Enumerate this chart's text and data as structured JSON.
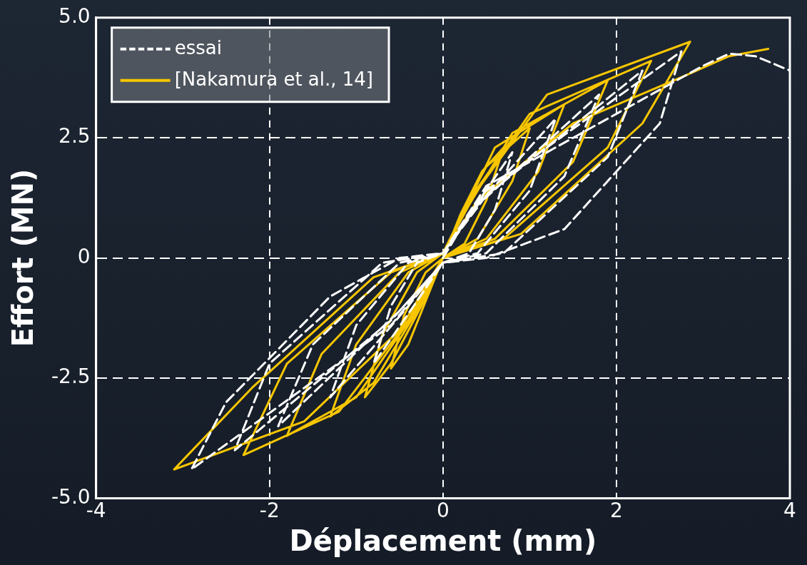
{
  "chart_data": {
    "type": "line",
    "xlabel": "Déplacement (mm)",
    "ylabel": "Effort (MN)",
    "xlim": [
      -4,
      4
    ],
    "xticks": [
      -4,
      -2,
      0,
      2,
      4
    ],
    "ylim": [
      -5,
      5
    ],
    "yticks": [
      {
        "value": -5,
        "label": "-5.0"
      },
      -2.5,
      0,
      2.5,
      {
        "value": 5,
        "label": "5.0"
      }
    ],
    "grid": true,
    "legend": "top left",
    "marker": "none",
    "series": [
      {
        "name": "essai",
        "color": "#ffffff",
        "line_style": "dashed",
        "x": [
          0,
          0.3,
          0.8,
          0.6,
          0.3,
          0,
          -0.3,
          -0.8,
          -0.6,
          -0.3,
          0,
          0.35,
          1.3,
          1.0,
          0.4,
          0,
          -0.4,
          -1.3,
          -1.0,
          -0.4,
          0,
          0.4,
          1.8,
          1.4,
          0.5,
          0,
          -0.5,
          -1.9,
          -1.5,
          -0.5,
          0,
          0.5,
          2.3,
          1.9,
          0.7,
          0,
          -0.6,
          -2.4,
          -2.0,
          -0.7,
          0,
          0.5,
          2.75,
          2.5,
          1.4,
          0.5,
          0,
          -0.6,
          -2.9,
          -2.5,
          -1.3,
          -0.5,
          0,
          0.5,
          1.6,
          3.0,
          3.3,
          3.6,
          4.0
        ],
        "values": [
          0,
          0.9,
          2.2,
          1.0,
          0.1,
          -0.1,
          -0.9,
          -2.2,
          -1.0,
          -0.1,
          0.1,
          1.0,
          2.9,
          1.4,
          0.1,
          -0.1,
          -1.0,
          -2.9,
          -1.4,
          -0.1,
          0.1,
          1.1,
          3.4,
          1.7,
          0.1,
          -0.1,
          -1.1,
          -3.5,
          -1.8,
          -0.1,
          0.1,
          1.3,
          3.9,
          2.1,
          0.1,
          -0.1,
          -1.3,
          -4.0,
          -2.2,
          -0.1,
          0.1,
          1.4,
          4.3,
          2.8,
          0.6,
          0,
          -0.1,
          -1.4,
          -4.4,
          -3.0,
          -0.8,
          0,
          0.1,
          1.5,
          2.6,
          4.0,
          4.25,
          4.2,
          3.9
        ]
      },
      {
        "name": "[Nakamura et al., 14]",
        "color": "#f7c600",
        "line_style": "solid",
        "x": [
          0,
          0.2,
          0.45,
          0.7,
          0.5,
          0.25,
          0,
          -0.2,
          -0.4,
          -0.6,
          -0.45,
          -0.2,
          0,
          0.2,
          0.5,
          1.0,
          0.8,
          0.4,
          0,
          -0.25,
          -0.6,
          -0.9,
          -0.7,
          -0.3,
          0,
          0.25,
          0.6,
          1.4,
          1.1,
          0.5,
          0,
          -0.3,
          -0.8,
          -1.3,
          -1.0,
          -0.4,
          0,
          0.3,
          0.8,
          1.9,
          1.5,
          0.6,
          0,
          -0.35,
          -1.0,
          -1.8,
          -1.4,
          -0.5,
          0,
          0.3,
          1.0,
          2.4,
          1.9,
          0.7,
          0,
          -0.4,
          -1.2,
          -2.3,
          -1.8,
          -0.6,
          0,
          0.35,
          1.2,
          2.85,
          2.3,
          0.9,
          0,
          -0.5,
          -1.6,
          -3.1,
          -2.2,
          -0.8,
          0,
          0.4,
          1.5,
          2.8,
          3.3,
          3.75
        ],
        "values": [
          0,
          0.9,
          1.8,
          2.3,
          1.2,
          0.3,
          0,
          -0.9,
          -1.8,
          -2.3,
          -1.2,
          -0.3,
          0,
          0.9,
          1.9,
          2.7,
          1.6,
          0.4,
          0,
          -1.0,
          -2.2,
          -2.9,
          -1.6,
          -0.3,
          0.1,
          1.0,
          2.3,
          3.2,
          1.8,
          0.4,
          0,
          -1.1,
          -2.6,
          -3.3,
          -1.8,
          -0.3,
          0.1,
          1.1,
          2.6,
          3.7,
          2.0,
          0.4,
          0,
          -1.2,
          -2.9,
          -3.7,
          -2.0,
          -0.3,
          0.1,
          1.2,
          3.0,
          4.1,
          2.3,
          0.4,
          0,
          -1.3,
          -3.2,
          -4.1,
          -2.2,
          -0.3,
          0.1,
          1.3,
          3.4,
          4.5,
          2.8,
          0.5,
          0,
          -1.5,
          -3.4,
          -4.4,
          -2.7,
          -0.4,
          0.1,
          1.2,
          2.8,
          3.8,
          4.2,
          4.35
        ]
      }
    ]
  }
}
